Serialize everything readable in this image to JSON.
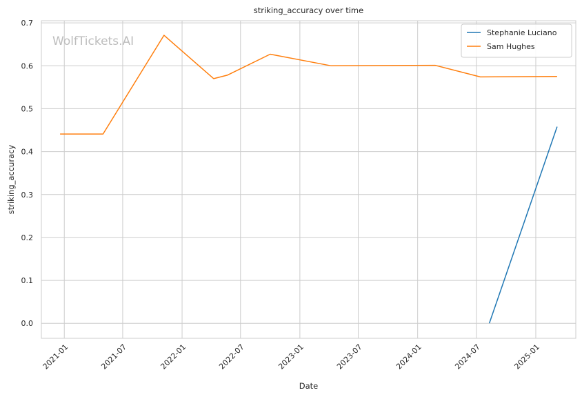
{
  "chart_data": {
    "type": "line",
    "title": "striking_accuracy over time",
    "xlabel": "Date",
    "ylabel": "striking_accuracy",
    "watermark": "WolfTickets.AI",
    "xlim": [
      "2020-10-22",
      "2025-05-05"
    ],
    "ylim": [
      -0.035,
      0.705
    ],
    "x_ticks": [
      {
        "date": "2021-01-01",
        "label": "2021-01"
      },
      {
        "date": "2021-07-01",
        "label": "2021-07"
      },
      {
        "date": "2022-01-01",
        "label": "2022-01"
      },
      {
        "date": "2022-07-01",
        "label": "2022-07"
      },
      {
        "date": "2023-01-01",
        "label": "2023-01"
      },
      {
        "date": "2023-07-01",
        "label": "2023-07"
      },
      {
        "date": "2024-01-01",
        "label": "2024-01"
      },
      {
        "date": "2024-07-01",
        "label": "2024-07"
      },
      {
        "date": "2025-01-01",
        "label": "2025-01"
      }
    ],
    "y_ticks": [
      0.0,
      0.1,
      0.2,
      0.3,
      0.4,
      0.5,
      0.6,
      0.7
    ],
    "y_tick_labels": [
      "0.0",
      "0.1",
      "0.2",
      "0.3",
      "0.4",
      "0.5",
      "0.6",
      "0.7"
    ],
    "grid": true,
    "legend": "top-right",
    "series": [
      {
        "name": "Stephanie Luciano",
        "color": "#1f77b4",
        "points": [
          {
            "x": "2024-08-10",
            "y": 0.0
          },
          {
            "x": "2025-03-08",
            "y": 0.458
          }
        ]
      },
      {
        "name": "Sam Hughes",
        "color": "#ff7f0e",
        "points": [
          {
            "x": "2020-12-19",
            "y": 0.441
          },
          {
            "x": "2021-05-01",
            "y": 0.441
          },
          {
            "x": "2021-11-06",
            "y": 0.671
          },
          {
            "x": "2022-04-09",
            "y": 0.57
          },
          {
            "x": "2022-05-21",
            "y": 0.578
          },
          {
            "x": "2022-10-01",
            "y": 0.627
          },
          {
            "x": "2023-04-08",
            "y": 0.6
          },
          {
            "x": "2024-02-24",
            "y": 0.601
          },
          {
            "x": "2024-07-13",
            "y": 0.574
          },
          {
            "x": "2025-03-08",
            "y": 0.575
          }
        ]
      }
    ]
  }
}
